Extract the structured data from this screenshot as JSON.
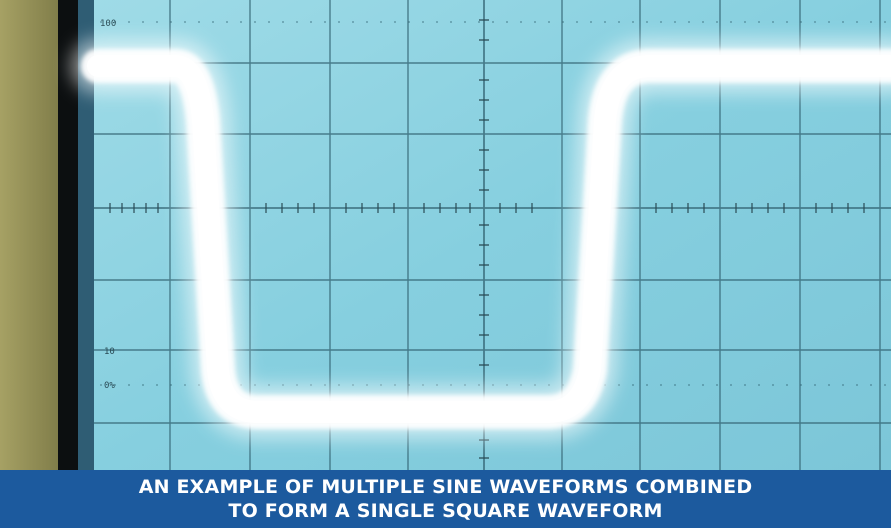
{
  "caption": {
    "line1": "AN EXAMPLE OF MULTIPLE SINE WAVEFORMS COMBINED",
    "line2": "TO FORM A SINGLE SQUARE WAVEFORM"
  },
  "scope": {
    "graticule_labels": {
      "top": "100",
      "lower1": "10",
      "lower2": "0%"
    },
    "colors": {
      "screen": "#8ad3e2",
      "grid": "#2f5f6e",
      "trace": "#ffffff",
      "bezel_left": "#8f8f4f",
      "caption_bg": "#1c5a9e"
    },
    "trace_shape": "square-wave"
  }
}
